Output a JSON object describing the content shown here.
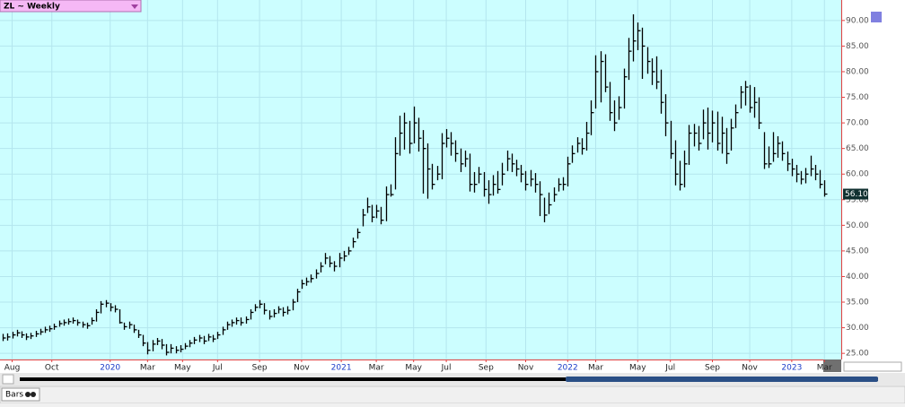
{
  "window_title": "ZL ~ Weekly",
  "bottom_tab": "Bars",
  "chart_data": {
    "type": "ohlc",
    "color": "#000000",
    "grid": true,
    "high": [
      28.8,
      28.9,
      29.2,
      29.6,
      29.3,
      28.9,
      29,
      29.4,
      29.8,
      30.2,
      30.4,
      30.8,
      31.4,
      31.6,
      31.8,
      32,
      31.6,
      31.2,
      31,
      32,
      33.6,
      35.2,
      35.4,
      34.8,
      34.4,
      33.6,
      31,
      31.2,
      30.6,
      29.6,
      28.6,
      27.2,
      27.6,
      28,
      27.8,
      26.8,
      26.8,
      26.4,
      26.6,
      27,
      27.6,
      28.2,
      28.6,
      28.4,
      28.8,
      28.6,
      29.2,
      30.2,
      31.2,
      31.6,
      32,
      32,
      32.2,
      33.6,
      34.6,
      35.4,
      34.8,
      33.4,
      33.6,
      34.2,
      34,
      34.2,
      35.6,
      37.6,
      39.4,
      39.8,
      40.4,
      41.4,
      42.8,
      44.6,
      44,
      43,
      44.6,
      45,
      45.8,
      47.6,
      49.4,
      53.2,
      55.4,
      54,
      54,
      53.6,
      57.6,
      58,
      67.2,
      71.4,
      72,
      70.4,
      73.2,
      71,
      68.6,
      66,
      62,
      61.6,
      68,
      68.8,
      68.2,
      66.6,
      65,
      64.6,
      64,
      60.4,
      61.4,
      60.4,
      58.8,
      59.8,
      60.6,
      62.2,
      64.6,
      64,
      62.8,
      61.8,
      60.6,
      60.8,
      60.2,
      58.6,
      55.4,
      56.4,
      57.4,
      59.2,
      59.4,
      63.4,
      65.6,
      67.2,
      67,
      70.2,
      74.4,
      83.2,
      84,
      83.4,
      78,
      74.4,
      75.2,
      80.6,
      86.6,
      91.2,
      89.6,
      88.6,
      84.8,
      82.6,
      83,
      80.4,
      75.6,
      70.4,
      66.6,
      62.6,
      64.6,
      69.6,
      69.8,
      69.4,
      72.6,
      73,
      72.4,
      72.2,
      71.2,
      69,
      70.8,
      73.6,
      77.2,
      78.2,
      77.4,
      77,
      75,
      68.2,
      65.4,
      68.2,
      67.4,
      66.4,
      64.4,
      63,
      61.8,
      60.6,
      61.2,
      63.6,
      61.8,
      60.8,
      58.8
    ],
    "low": [
      27.4,
      27.5,
      27.9,
      28.3,
      28,
      27.6,
      27.8,
      28.2,
      28.6,
      29,
      29.2,
      29.6,
      30.2,
      30.4,
      30.6,
      30.8,
      30.4,
      30,
      29.8,
      30.6,
      31.2,
      32.8,
      34,
      33.2,
      33,
      30.8,
      29.6,
      29.8,
      29,
      28,
      26.4,
      24.8,
      25.4,
      26.6,
      25.8,
      24.6,
      25,
      25,
      25.2,
      25.8,
      26.2,
      26.8,
      27.2,
      26.8,
      27.4,
      27.2,
      27.8,
      28.6,
      29.6,
      30.2,
      30.6,
      30.4,
      30.8,
      31.6,
      33.2,
      33.8,
      32.6,
      31.6,
      32,
      32.8,
      32.2,
      32.6,
      33.4,
      35,
      37.6,
      38.2,
      38.8,
      39.6,
      40.8,
      42.4,
      41.8,
      41,
      41.8,
      43,
      44.2,
      45.6,
      47.4,
      49.8,
      52.4,
      50.6,
      51.4,
      50.2,
      50.8,
      55.6,
      57,
      63.6,
      64.8,
      64,
      66,
      64.4,
      56.2,
      55.2,
      57,
      58.8,
      59,
      65.2,
      63.6,
      62.4,
      60.4,
      61.4,
      56.6,
      56.4,
      58.2,
      55.6,
      54.2,
      55.8,
      56.2,
      57.8,
      60.6,
      60.4,
      59.6,
      58.4,
      56.8,
      57.6,
      56.4,
      51.8,
      50.6,
      52.2,
      54.6,
      56.6,
      56.8,
      57.6,
      62.2,
      64.2,
      63.8,
      64.6,
      67.6,
      72.8,
      74,
      76,
      70.4,
      68.4,
      70.6,
      72.8,
      78.4,
      82,
      84.2,
      78.6,
      79.6,
      77.4,
      76.6,
      71.8,
      67.4,
      63,
      57.8,
      56.8,
      57.4,
      61.8,
      65.4,
      64.6,
      66.8,
      64.8,
      66.2,
      64.6,
      64,
      62,
      64.6,
      69,
      72.8,
      73.4,
      72,
      71,
      68.8,
      61,
      61.2,
      62.4,
      63.2,
      62.6,
      60.6,
      59.6,
      58.4,
      58,
      58.2,
      59.6,
      58.8,
      57.2,
      55.6
    ],
    "close": [
      28,
      28.2,
      28.6,
      29,
      28.6,
      28.2,
      28.4,
      28.8,
      29.2,
      29.6,
      29.8,
      30.2,
      30.8,
      31,
      31.2,
      31.4,
      31,
      30.6,
      30.4,
      31.4,
      33,
      34.6,
      34.8,
      34,
      33.6,
      31,
      30.2,
      30.6,
      29.6,
      28.6,
      27,
      25.6,
      26.8,
      27.4,
      26.6,
      25.2,
      26,
      25.6,
      25.8,
      26.4,
      27,
      27.6,
      28,
      27.4,
      28.2,
      27.8,
      28.6,
      29.6,
      30.6,
      31,
      31.4,
      31,
      31.6,
      33,
      34,
      34.6,
      33.4,
      32.2,
      32.8,
      33.6,
      33,
      33.4,
      35,
      37,
      38.6,
      39,
      39.6,
      40.6,
      42,
      43.6,
      42.6,
      42,
      43.6,
      44,
      45,
      46.8,
      48.6,
      52,
      53.6,
      51.6,
      52.8,
      51,
      56,
      56,
      64,
      68,
      70,
      66,
      70,
      67,
      65,
      61,
      58,
      60,
      66,
      67,
      66,
      64,
      62,
      63,
      58,
      58,
      60,
      57,
      56,
      58,
      57,
      60,
      63,
      62,
      61,
      60,
      58,
      59,
      58,
      56,
      52,
      54,
      56,
      58,
      58,
      62,
      64,
      66,
      65,
      68,
      72,
      80,
      82,
      77,
      72,
      70,
      73,
      79,
      84,
      86,
      88,
      85,
      82,
      80,
      78,
      74,
      70,
      64,
      60,
      58,
      62,
      68,
      68,
      66,
      70,
      68,
      70,
      66,
      68,
      64,
      69,
      72,
      76,
      77,
      73,
      74,
      70,
      62,
      62,
      64,
      66,
      64,
      62,
      61,
      60,
      59,
      60,
      61,
      60,
      58,
      56.1
    ],
    "last": {
      "value": 56.1,
      "label": "56.10"
    },
    "xlim": [
      -0.6,
      179.6
    ],
    "xticks": [
      {
        "value": 2,
        "label": "Aug"
      },
      {
        "value": 10.5,
        "label": "Oct"
      },
      {
        "value": 23,
        "label": "2020"
      },
      {
        "value": 31,
        "label": "Mar"
      },
      {
        "value": 38.5,
        "label": "May"
      },
      {
        "value": 46,
        "label": "Jul"
      },
      {
        "value": 55,
        "label": "Sep"
      },
      {
        "value": 64,
        "label": "Nov"
      },
      {
        "value": 72.5,
        "label": "2021"
      },
      {
        "value": 80,
        "label": "Mar"
      },
      {
        "value": 88,
        "label": "May"
      },
      {
        "value": 95,
        "label": "Jul"
      },
      {
        "value": 103.5,
        "label": "Sep"
      },
      {
        "value": 112,
        "label": "Nov"
      },
      {
        "value": 121,
        "label": "2022"
      },
      {
        "value": 127,
        "label": "Mar"
      },
      {
        "value": 136,
        "label": "May"
      },
      {
        "value": 143,
        "label": "Jul"
      },
      {
        "value": 152,
        "label": "Sep"
      },
      {
        "value": 160,
        "label": "Nov"
      },
      {
        "value": 169,
        "label": "2023"
      },
      {
        "value": 176,
        "label": "Mar"
      }
    ],
    "ylim": [
      23.8,
      94
    ],
    "yticks": [
      {
        "value": 25,
        "label": "25.00"
      },
      {
        "value": 30,
        "label": "30.00"
      },
      {
        "value": 35,
        "label": "35.00"
      },
      {
        "value": 40,
        "label": "40.00"
      },
      {
        "value": 45,
        "label": "45.00"
      },
      {
        "value": 50,
        "label": "50.00"
      },
      {
        "value": 55,
        "label": "55.00"
      },
      {
        "value": 60,
        "label": "60.00"
      },
      {
        "value": 65,
        "label": "65.00"
      },
      {
        "value": 70,
        "label": "70.00"
      },
      {
        "value": 75,
        "label": "75.00"
      },
      {
        "value": 80,
        "label": "80.00"
      },
      {
        "value": 85,
        "label": "85.00"
      },
      {
        "value": 90,
        "label": "90.00"
      }
    ]
  }
}
